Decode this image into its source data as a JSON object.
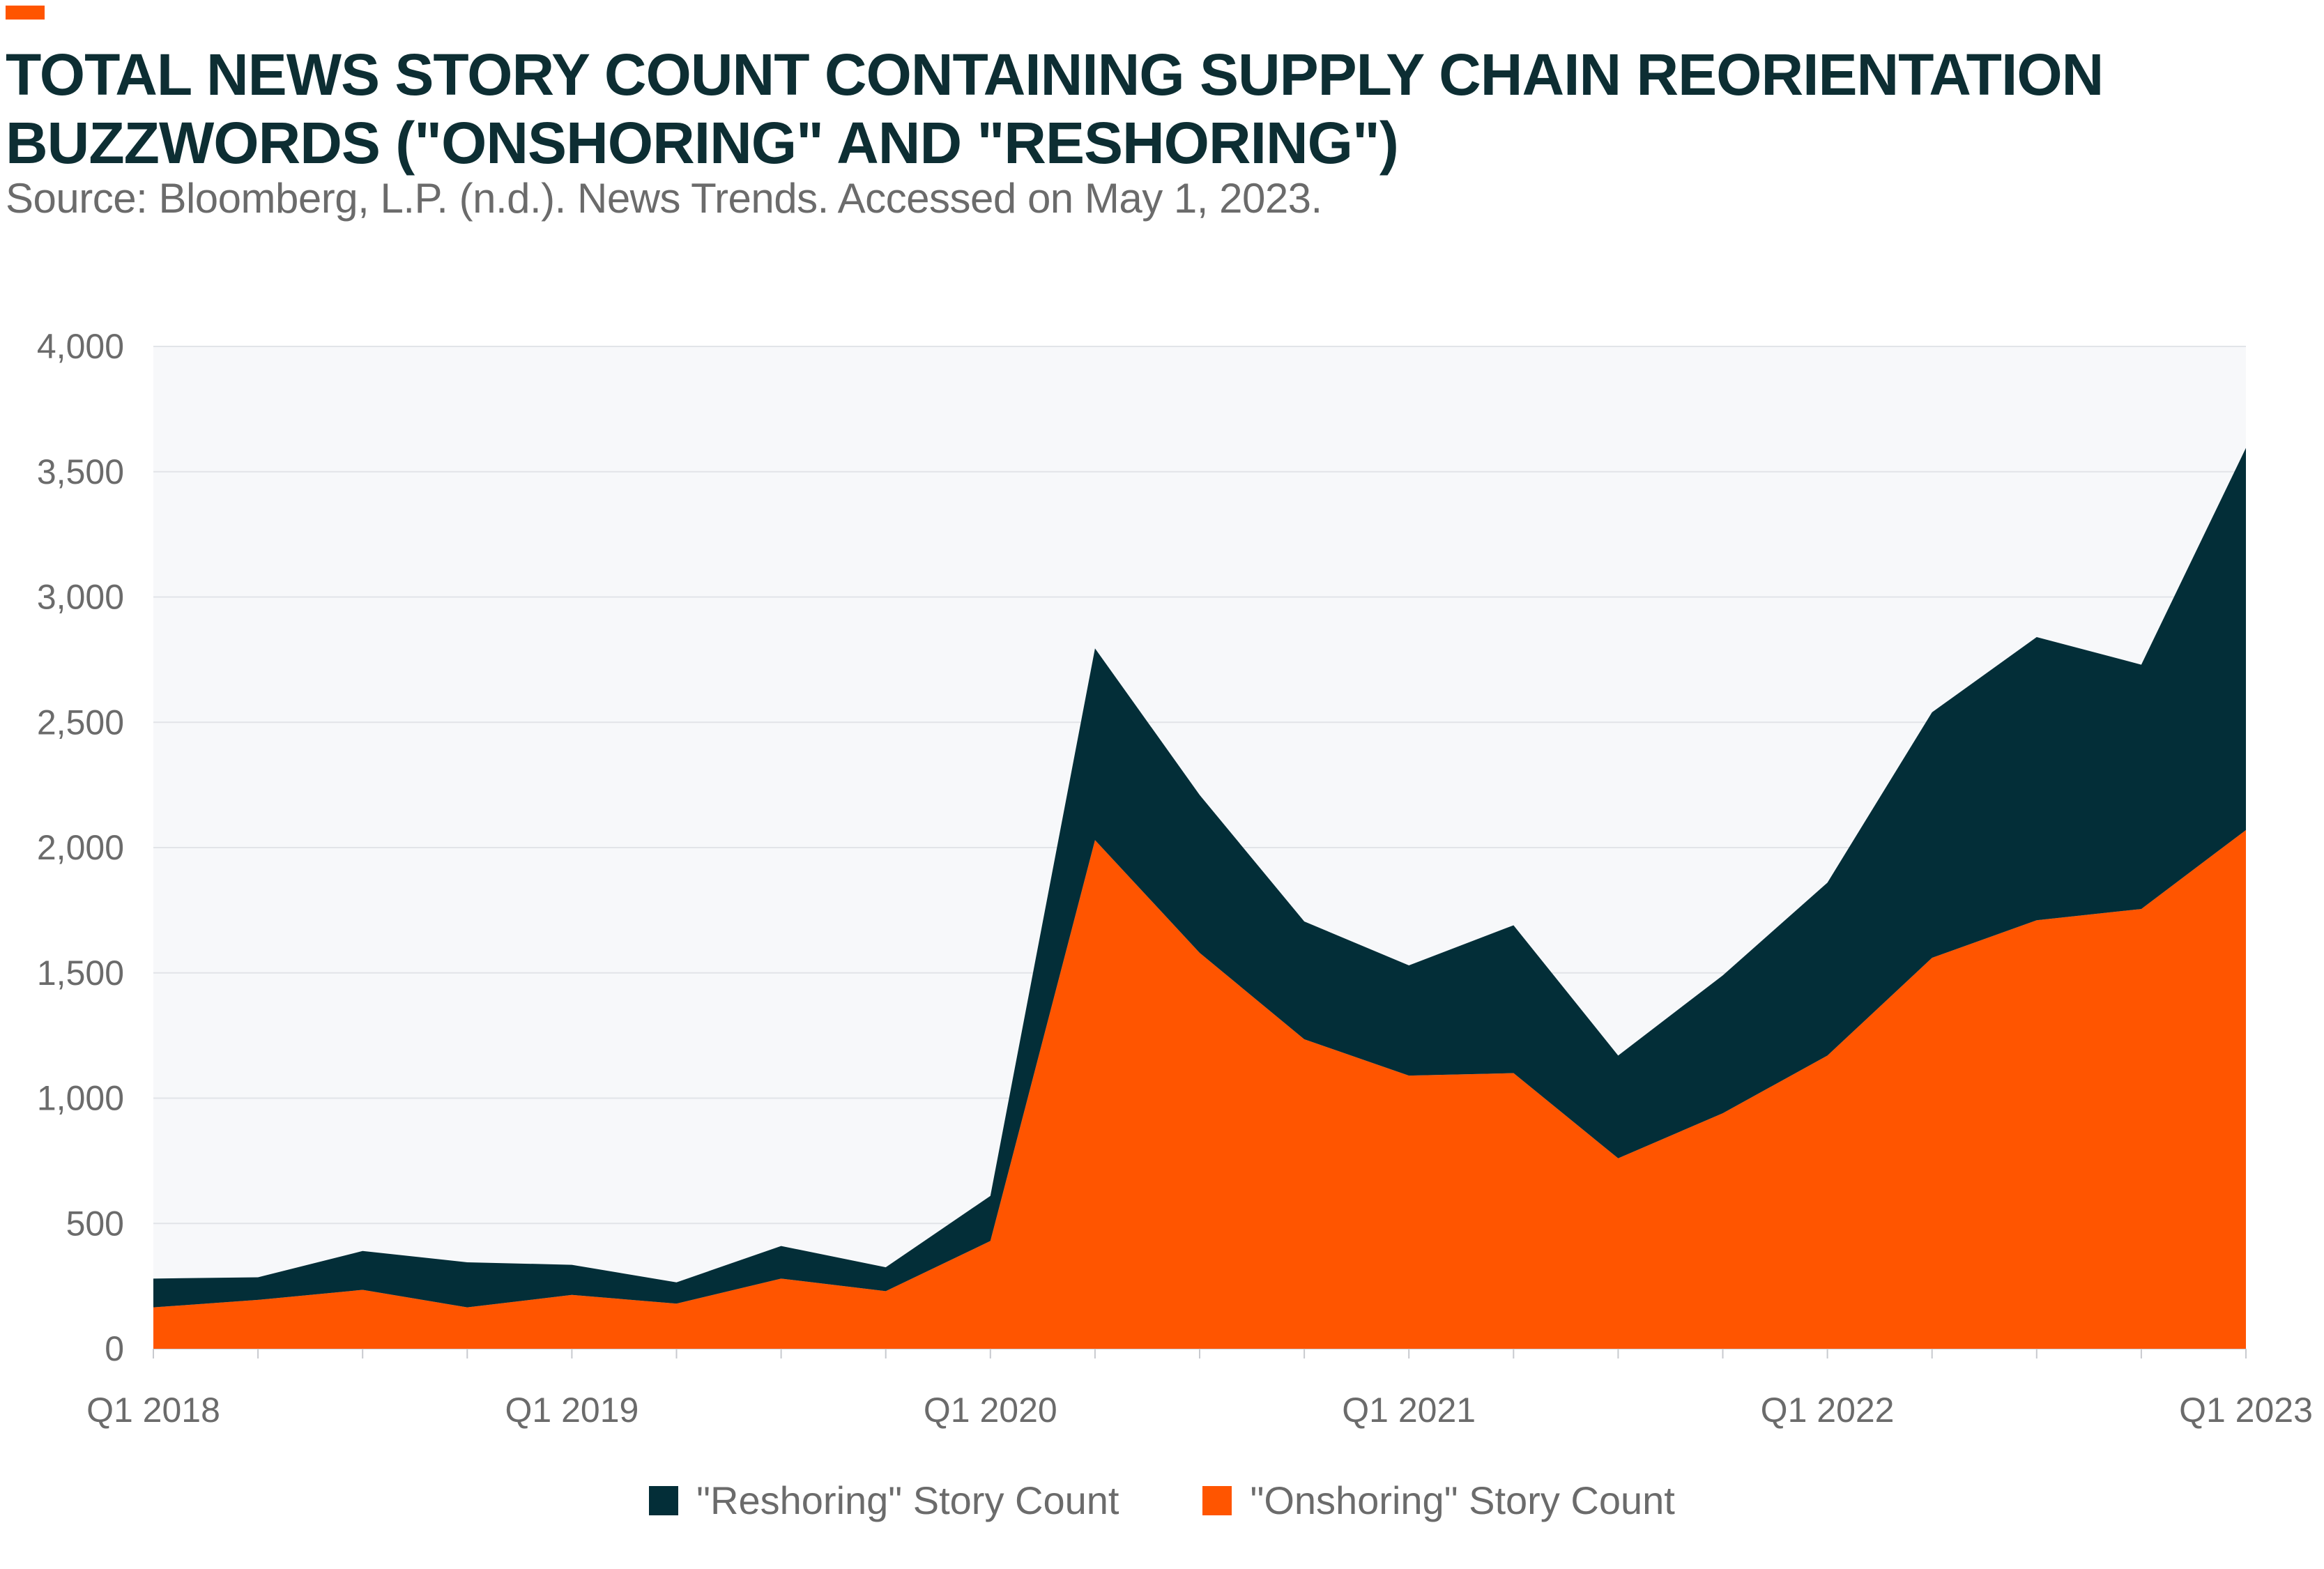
{
  "header": {
    "title": "TOTAL NEWS STORY COUNT CONTAINING SUPPLY CHAIN REORIENTATION BUZZWORDS (\"ONSHORING\" AND \"RESHORING\")",
    "subtitle": "Source: Bloomberg, L.P. (n.d.). News Trends. Accessed on May 1, 2023."
  },
  "colors": {
    "accent": "#ff5500",
    "onshoring": "#ff5500",
    "reshoring": "#032e38",
    "plot_background": "#f7f8fa",
    "gridline": "#e2e4e8"
  },
  "chart_data": {
    "type": "area",
    "stacked": true,
    "title": "TOTAL NEWS STORY COUNT CONTAINING SUPPLY CHAIN REORIENTATION BUZZWORDS (\"ONSHORING\" AND \"RESHORING\")",
    "x": [
      "Q1 2018",
      "Q2 2018",
      "Q3 2018",
      "Q4 2018",
      "Q1 2019",
      "Q2 2019",
      "Q3 2019",
      "Q4 2019",
      "Q1 2020",
      "Q2 2020",
      "Q3 2020",
      "Q4 2020",
      "Q1 2021",
      "Q2 2021",
      "Q3 2021",
      "Q4 2021",
      "Q1 2022",
      "Q2 2022",
      "Q3 2022",
      "Q4 2022",
      "Q1 2023"
    ],
    "x_tick_labels": [
      "Q1 2018",
      "Q1 2019",
      "Q1 2020",
      "Q1 2021",
      "Q1 2022",
      "Q1 2023"
    ],
    "x_tick_indices": [
      0,
      4,
      8,
      12,
      16,
      20
    ],
    "y_ticks": [
      0,
      500,
      1000,
      1500,
      2000,
      2500,
      3000,
      3500,
      4000
    ],
    "y_tick_labels": [
      "0",
      "500",
      "1,000",
      "1,500",
      "2,000",
      "2,500",
      "3,000",
      "3,500",
      "4,000"
    ],
    "ylim": [
      0,
      4000
    ],
    "grid": "horizontal",
    "legend_position": "bottom-center",
    "series": [
      {
        "name": "\"Onshoring\" Story Count",
        "color": "#ff5500",
        "values": [
          165,
          195,
          235,
          165,
          215,
          180,
          280,
          230,
          430,
          2030,
          1580,
          1235,
          1090,
          1100,
          760,
          940,
          1170,
          1560,
          1710,
          1755,
          2070
        ]
      },
      {
        "name": "\"Reshoring\" Story Count",
        "color": "#032e38",
        "values": [
          115,
          90,
          155,
          180,
          120,
          85,
          130,
          95,
          180,
          765,
          630,
          470,
          440,
          590,
          410,
          550,
          690,
          980,
          1130,
          975,
          1525
        ]
      }
    ]
  },
  "legend": {
    "reshoring_label": "\"Reshoring\" Story Count",
    "onshoring_label": "\"Onshoring\" Story Count"
  }
}
